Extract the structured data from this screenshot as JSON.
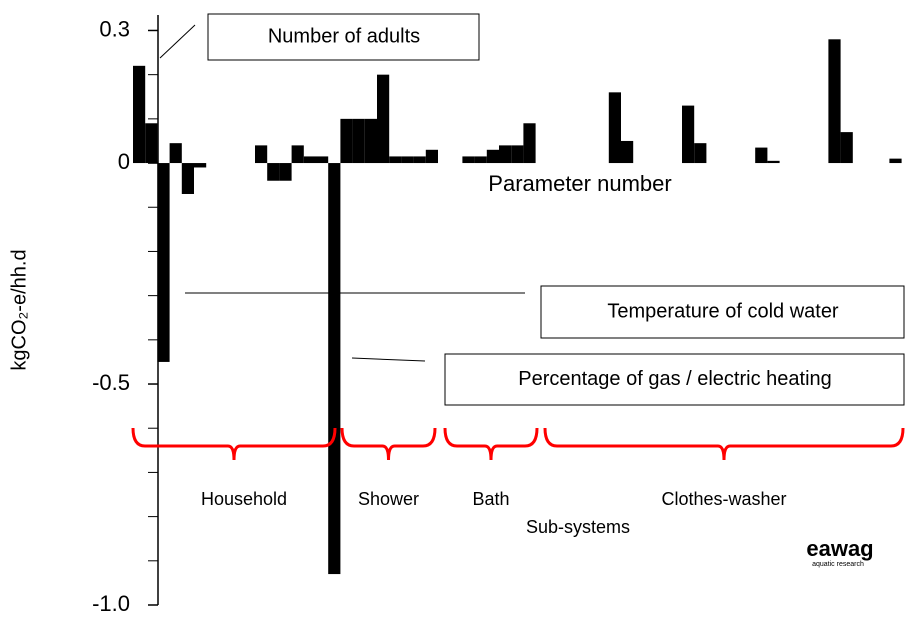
{
  "chart_data": {
    "type": "bar",
    "y_label": "kgCO₂-e/hh.d",
    "x_label": "Parameter number",
    "categories": [
      null,
      null,
      null,
      null,
      null,
      null,
      null,
      null,
      null,
      null,
      null,
      null,
      null,
      null,
      null,
      null,
      null,
      null,
      null,
      null,
      null,
      null,
      null,
      null,
      null,
      null,
      null,
      null,
      null,
      null,
      null,
      null,
      null,
      null,
      null,
      null,
      null,
      null,
      null,
      null,
      null,
      null,
      null,
      null,
      null,
      null,
      null,
      null,
      null,
      null,
      null,
      null,
      null,
      null,
      null,
      null,
      null,
      null,
      null,
      null,
      null,
      null,
      null
    ],
    "values": [
      0.22,
      0.09,
      -0.45,
      0.045,
      -0.07,
      -0.01,
      0,
      0,
      0,
      0,
      0.04,
      -0.04,
      -0.04,
      0.04,
      0.015,
      0.015,
      -0.93,
      0.1,
      0.1,
      0.1,
      0.2,
      0.015,
      0.015,
      0.015,
      0.03,
      0,
      0,
      0.015,
      0.015,
      0.03,
      0.04,
      0.04,
      0.09,
      0,
      0,
      0,
      0,
      0,
      0,
      0.16,
      0.05,
      0,
      0,
      0,
      0,
      0.13,
      0.045,
      0,
      0,
      0,
      0,
      0.035,
      0.005,
      0,
      0,
      0,
      0,
      0.28,
      0.07,
      0,
      0,
      0,
      0.01
    ],
    "color": "#000000",
    "ylim": [
      -1.0,
      0.335
    ],
    "yticks": [
      0.3,
      0,
      -0.5,
      {
        "value": -1,
        "label": "-1.0"
      }
    ],
    "minor_yticks": [
      0.2,
      0.1,
      -0.1,
      -0.2,
      -0.3,
      -0.4,
      -0.6,
      -0.7,
      -0.8,
      -0.9
    ],
    "annotations": [
      "Number of adults",
      "Temperature of cold water",
      "Percentage of gas / electric heating"
    ],
    "groups": [
      "Household",
      "Shower",
      "Bath",
      "Clothes-washer"
    ],
    "groups_title": "Sub-systems",
    "group_color": "#ff0000",
    "logo": "eawag",
    "logo_sub": "aquatic research"
  }
}
